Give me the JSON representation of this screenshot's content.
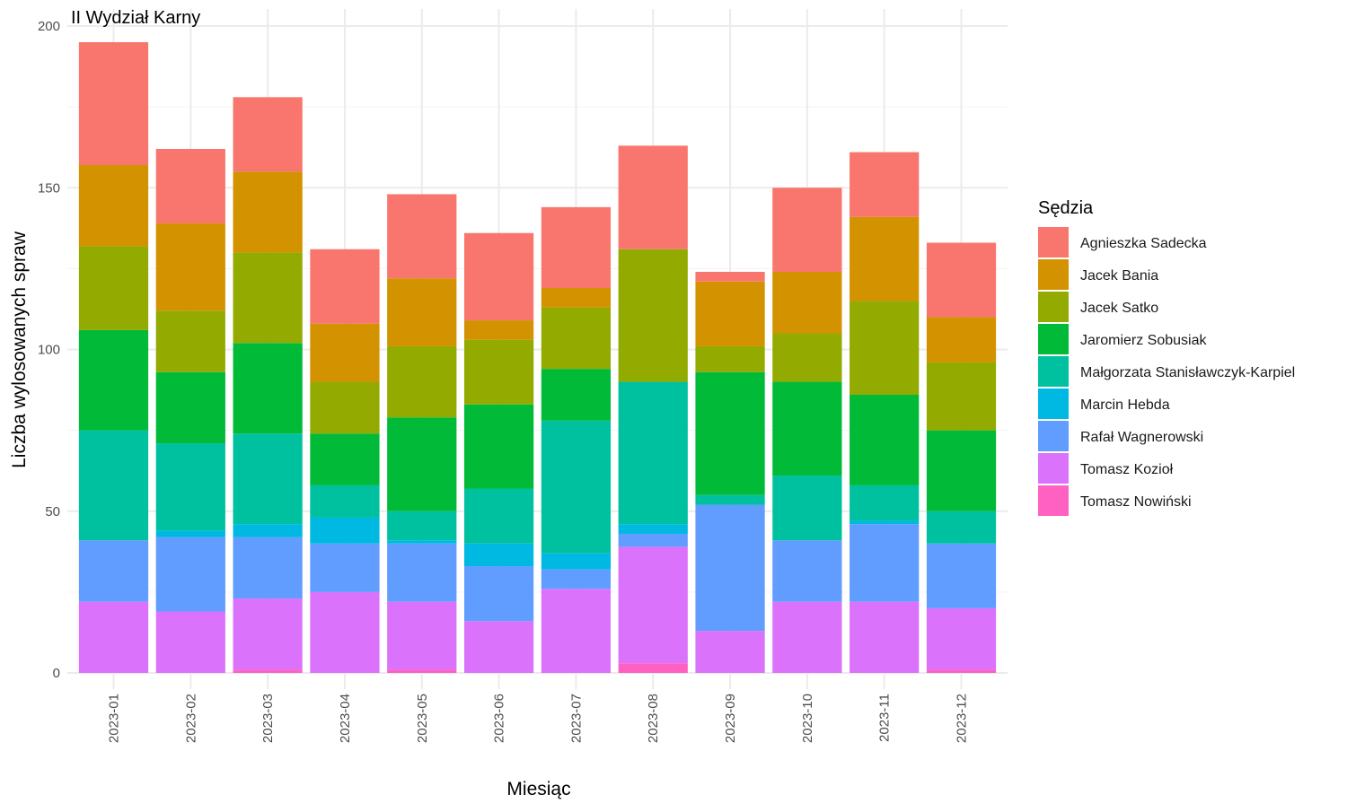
{
  "chart_data": {
    "type": "bar",
    "stacked": true,
    "title": "II Wydział Karny",
    "xlabel": "Miesiąc",
    "ylabel": "Liczba wylosowanych spraw",
    "ylim": [
      0,
      200
    ],
    "yticks": [
      0,
      50,
      100,
      150,
      200
    ],
    "grid": true,
    "legend_title": "Sędzia",
    "legend_position": "right",
    "categories": [
      "2023-01",
      "2023-02",
      "2023-03",
      "2023-04",
      "2023-05",
      "2023-06",
      "2023-07",
      "2023-08",
      "2023-09",
      "2023-10",
      "2023-11",
      "2023-12"
    ],
    "series": [
      {
        "name": "Tomasz Nowiński",
        "color": "#FF61C3",
        "values": [
          0,
          0,
          1,
          0,
          1,
          0,
          0,
          3,
          0,
          0,
          0,
          1
        ]
      },
      {
        "name": "Tomasz Kozioł",
        "color": "#DB72FB",
        "values": [
          22,
          19,
          22,
          25,
          21,
          16,
          26,
          36,
          13,
          22,
          22,
          19
        ]
      },
      {
        "name": "Rafał Wagnerowski",
        "color": "#619CFF",
        "values": [
          19,
          23,
          19,
          15,
          18,
          17,
          6,
          4,
          39,
          19,
          24,
          20
        ]
      },
      {
        "name": "Marcin Hebda",
        "color": "#00B9E3",
        "values": [
          0,
          2,
          4,
          8,
          1,
          7,
          5,
          3,
          0,
          0,
          1,
          0
        ]
      },
      {
        "name": "Małgorzata Stanisławczyk-Karpiel",
        "color": "#00C19F",
        "values": [
          34,
          27,
          28,
          10,
          9,
          17,
          41,
          44,
          3,
          20,
          11,
          10
        ]
      },
      {
        "name": "Jaromierz Sobusiak",
        "color": "#00BA38",
        "values": [
          31,
          22,
          28,
          16,
          29,
          26,
          16,
          0,
          38,
          29,
          28,
          25
        ]
      },
      {
        "name": "Jacek Satko",
        "color": "#93AA00",
        "values": [
          26,
          19,
          28,
          16,
          22,
          20,
          19,
          41,
          8,
          15,
          29,
          21
        ]
      },
      {
        "name": "Jacek Bania",
        "color": "#D39200",
        "values": [
          25,
          27,
          25,
          18,
          21,
          6,
          6,
          0,
          20,
          19,
          26,
          14
        ]
      },
      {
        "name": "Agnieszka Sadecka",
        "color": "#F8766D",
        "values": [
          38,
          23,
          23,
          23,
          26,
          27,
          25,
          32,
          3,
          26,
          20,
          23
        ]
      }
    ],
    "legend_order": [
      "Agnieszka Sadecka",
      "Jacek Bania",
      "Jacek Satko",
      "Jaromierz Sobusiak",
      "Małgorzata Stanisławczyk-Karpiel",
      "Marcin Hebda",
      "Rafał Wagnerowski",
      "Tomasz Kozioł",
      "Tomasz Nowiński"
    ]
  }
}
